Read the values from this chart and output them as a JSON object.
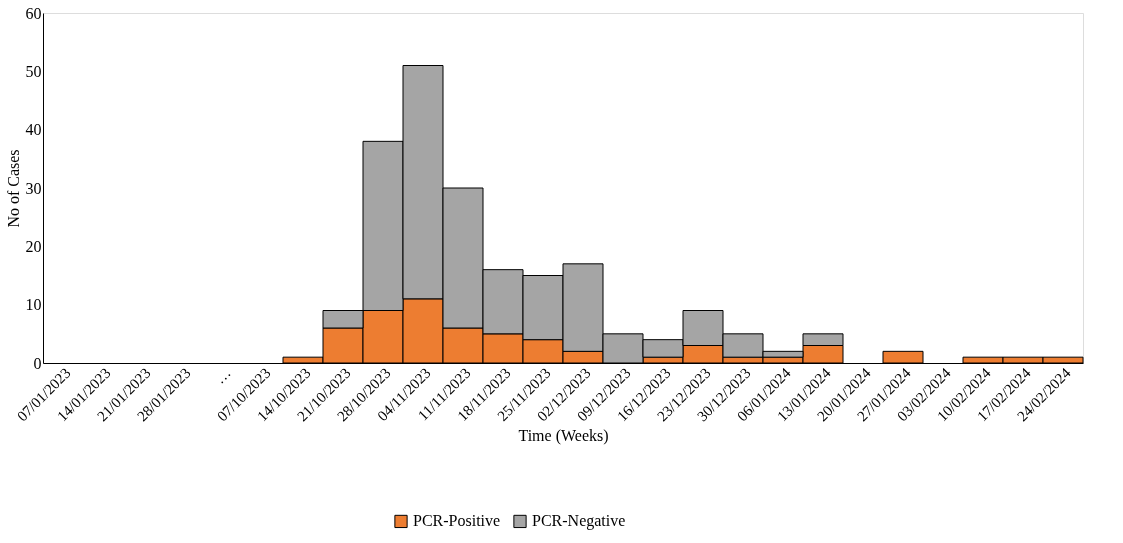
{
  "chart_data": {
    "type": "bar",
    "stacked": true,
    "xlabel": "Time (Weeks)",
    "ylabel": "No of Cases",
    "categories": [
      "07/01/2023",
      "14/01/2023",
      "21/01/2023",
      "28/01/2023",
      "…",
      "07/10/2023",
      "14/10/2023",
      "21/10/2023",
      "28/10/2023",
      "04/11/2023",
      "11/11/2023",
      "18/11/2023",
      "25/11/2023",
      "02/12/2023",
      "09/12/2023",
      "16/12/2023",
      "23/12/2023",
      "30/12/2023",
      "06/01/2024",
      "13/01/2024",
      "20/01/2024",
      "27/01/2024",
      "03/02/2024",
      "10/02/2024",
      "17/02/2024",
      "24/02/2024"
    ],
    "series": [
      {
        "name": "PCR-Positive",
        "color": "#ed7d31",
        "values": [
          0,
          0,
          0,
          0,
          0,
          0,
          1,
          6,
          9,
          11,
          6,
          5,
          4,
          2,
          0,
          1,
          3,
          1,
          1,
          3,
          0,
          2,
          0,
          1,
          1,
          1
        ]
      },
      {
        "name": "PCR-Negative",
        "color": "#a5a5a5",
        "values": [
          0,
          0,
          0,
          0,
          0,
          0,
          0,
          3,
          29,
          40,
          24,
          11,
          11,
          15,
          5,
          3,
          6,
          4,
          1,
          2,
          0,
          0,
          0,
          0,
          0,
          0
        ]
      }
    ],
    "ylim": [
      0,
      60
    ],
    "yticks": [
      0,
      10,
      20,
      30,
      40,
      50,
      60
    ],
    "grid": false,
    "legend": "bottom"
  }
}
